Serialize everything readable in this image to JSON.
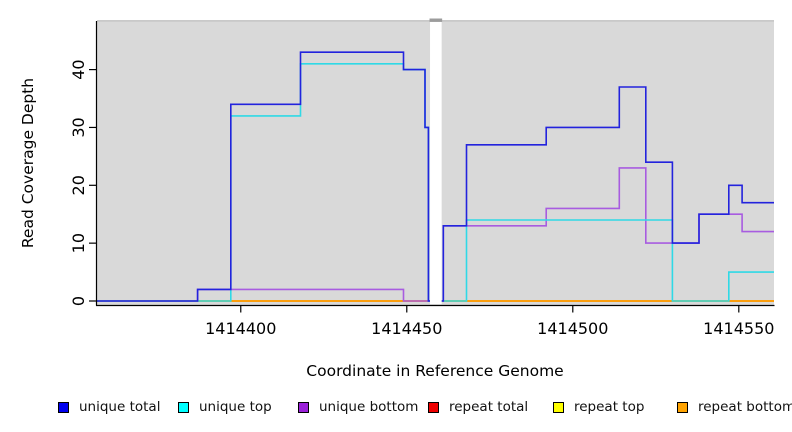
{
  "chart_data": {
    "type": "line",
    "subtype": "step-after",
    "title": "",
    "xlabel": "Coordinate in Reference Genome",
    "ylabel": "Read Coverage Depth",
    "xlim": [
      1414356.7,
      1414560.6
    ],
    "ylim": [
      0,
      48.4
    ],
    "x_ticks": [
      {
        "value": 1414400,
        "label": "1414400"
      },
      {
        "value": 1414450,
        "label": "1414450"
      },
      {
        "value": 1414500,
        "label": "1414500"
      },
      {
        "value": 1414550,
        "label": "1414550"
      }
    ],
    "y_ticks": [
      {
        "value": 0,
        "label": "0"
      },
      {
        "value": 10,
        "label": "10"
      },
      {
        "value": 20,
        "label": "20"
      },
      {
        "value": 30,
        "label": "30"
      },
      {
        "value": 40,
        "label": "40"
      }
    ],
    "grid": false,
    "panel_background": "#d9d9d9",
    "panel_top_edge_color": "#c9c9c9",
    "gap_region": {
      "x_start": 1414457,
      "x_end": 1414460.5,
      "fill": "#ffffff",
      "cap_color": "#9c9c9c"
    },
    "legend_position": "bottom-horizontal",
    "series": [
      {
        "name": "repeat total",
        "color": "#e00000",
        "legend_color": "#ee0000",
        "segments": [
          {
            "points": [
              [
                1414356.7,
                0
              ]
            ],
            "end": 1414457
          },
          {
            "points": [
              [
                1414460.5,
                0
              ]
            ],
            "end": 1414560.6
          }
        ]
      },
      {
        "name": "repeat top",
        "color": "#ffff00",
        "legend_color": "#ffff00",
        "segments": [
          {
            "points": [
              [
                1414356.7,
                0
              ]
            ],
            "end": 1414457
          },
          {
            "points": [
              [
                1414460.5,
                0
              ]
            ],
            "end": 1414560.6
          }
        ]
      },
      {
        "name": "repeat bottom",
        "color": "#ff9500",
        "legend_color": "#ffa300",
        "segments": [
          {
            "points": [
              [
                1414356.7,
                0
              ]
            ],
            "end": 1414457
          },
          {
            "points": [
              [
                1414460.5,
                0
              ]
            ],
            "end": 1414560.6
          }
        ]
      },
      {
        "name": "unique bottom",
        "color": "#a85ce0",
        "legend_color": "#9a20d8",
        "segments": [
          {
            "points": [
              [
                1414356.7,
                0
              ],
              [
                1414387,
                2
              ],
              [
                1414449,
                0
              ]
            ],
            "end": 1414457
          },
          {
            "points": [
              [
                1414460.5,
                0
              ],
              [
                1414461,
                13
              ],
              [
                1414492,
                16
              ],
              [
                1414514,
                23
              ],
              [
                1414522,
                10
              ],
              [
                1414538,
                15
              ],
              [
                1414551,
                12
              ]
            ],
            "end": 1414560.6
          }
        ]
      },
      {
        "name": "unique top",
        "color": "#2fd9e6",
        "legend_color": "#00ffff",
        "segments": [
          {
            "points": [
              [
                1414356.7,
                0
              ],
              [
                1414397,
                32
              ],
              [
                1414418,
                41
              ],
              [
                1414449,
                40
              ],
              [
                1414455.5,
                30
              ],
              [
                1414456.5,
                0
              ]
            ],
            "end": 1414457
          },
          {
            "points": [
              [
                1414460.5,
                0
              ],
              [
                1414468,
                14
              ],
              [
                1414530,
                0
              ],
              [
                1414547,
                5
              ]
            ],
            "end": 1414560.6
          }
        ]
      },
      {
        "name": "unique total",
        "color": "#2323dd",
        "legend_color": "#0000ee",
        "segments": [
          {
            "points": [
              [
                1414356.7,
                0
              ],
              [
                1414387,
                2
              ],
              [
                1414397,
                34
              ],
              [
                1414418,
                43
              ],
              [
                1414449,
                40
              ],
              [
                1414455.5,
                30
              ],
              [
                1414456.5,
                0
              ]
            ],
            "end": 1414457
          },
          {
            "points": [
              [
                1414460.5,
                0
              ],
              [
                1414461,
                13
              ],
              [
                1414468,
                27
              ],
              [
                1414492,
                30
              ],
              [
                1414514,
                37
              ],
              [
                1414522,
                24
              ],
              [
                1414530,
                10
              ],
              [
                1414538,
                15
              ],
              [
                1414547,
                20
              ],
              [
                1414551,
                17
              ]
            ],
            "end": 1414560.6
          }
        ]
      }
    ]
  },
  "legend": {
    "items": [
      {
        "label": "unique total",
        "color": "#0000ee"
      },
      {
        "label": "unique top",
        "color": "#00ffff"
      },
      {
        "label": "unique bottom",
        "color": "#9a20d8"
      },
      {
        "label": "repeat total",
        "color": "#ee0000"
      },
      {
        "label": "repeat top",
        "color": "#ffff00"
      },
      {
        "label": "repeat bottom",
        "color": "#ffa300"
      }
    ]
  }
}
